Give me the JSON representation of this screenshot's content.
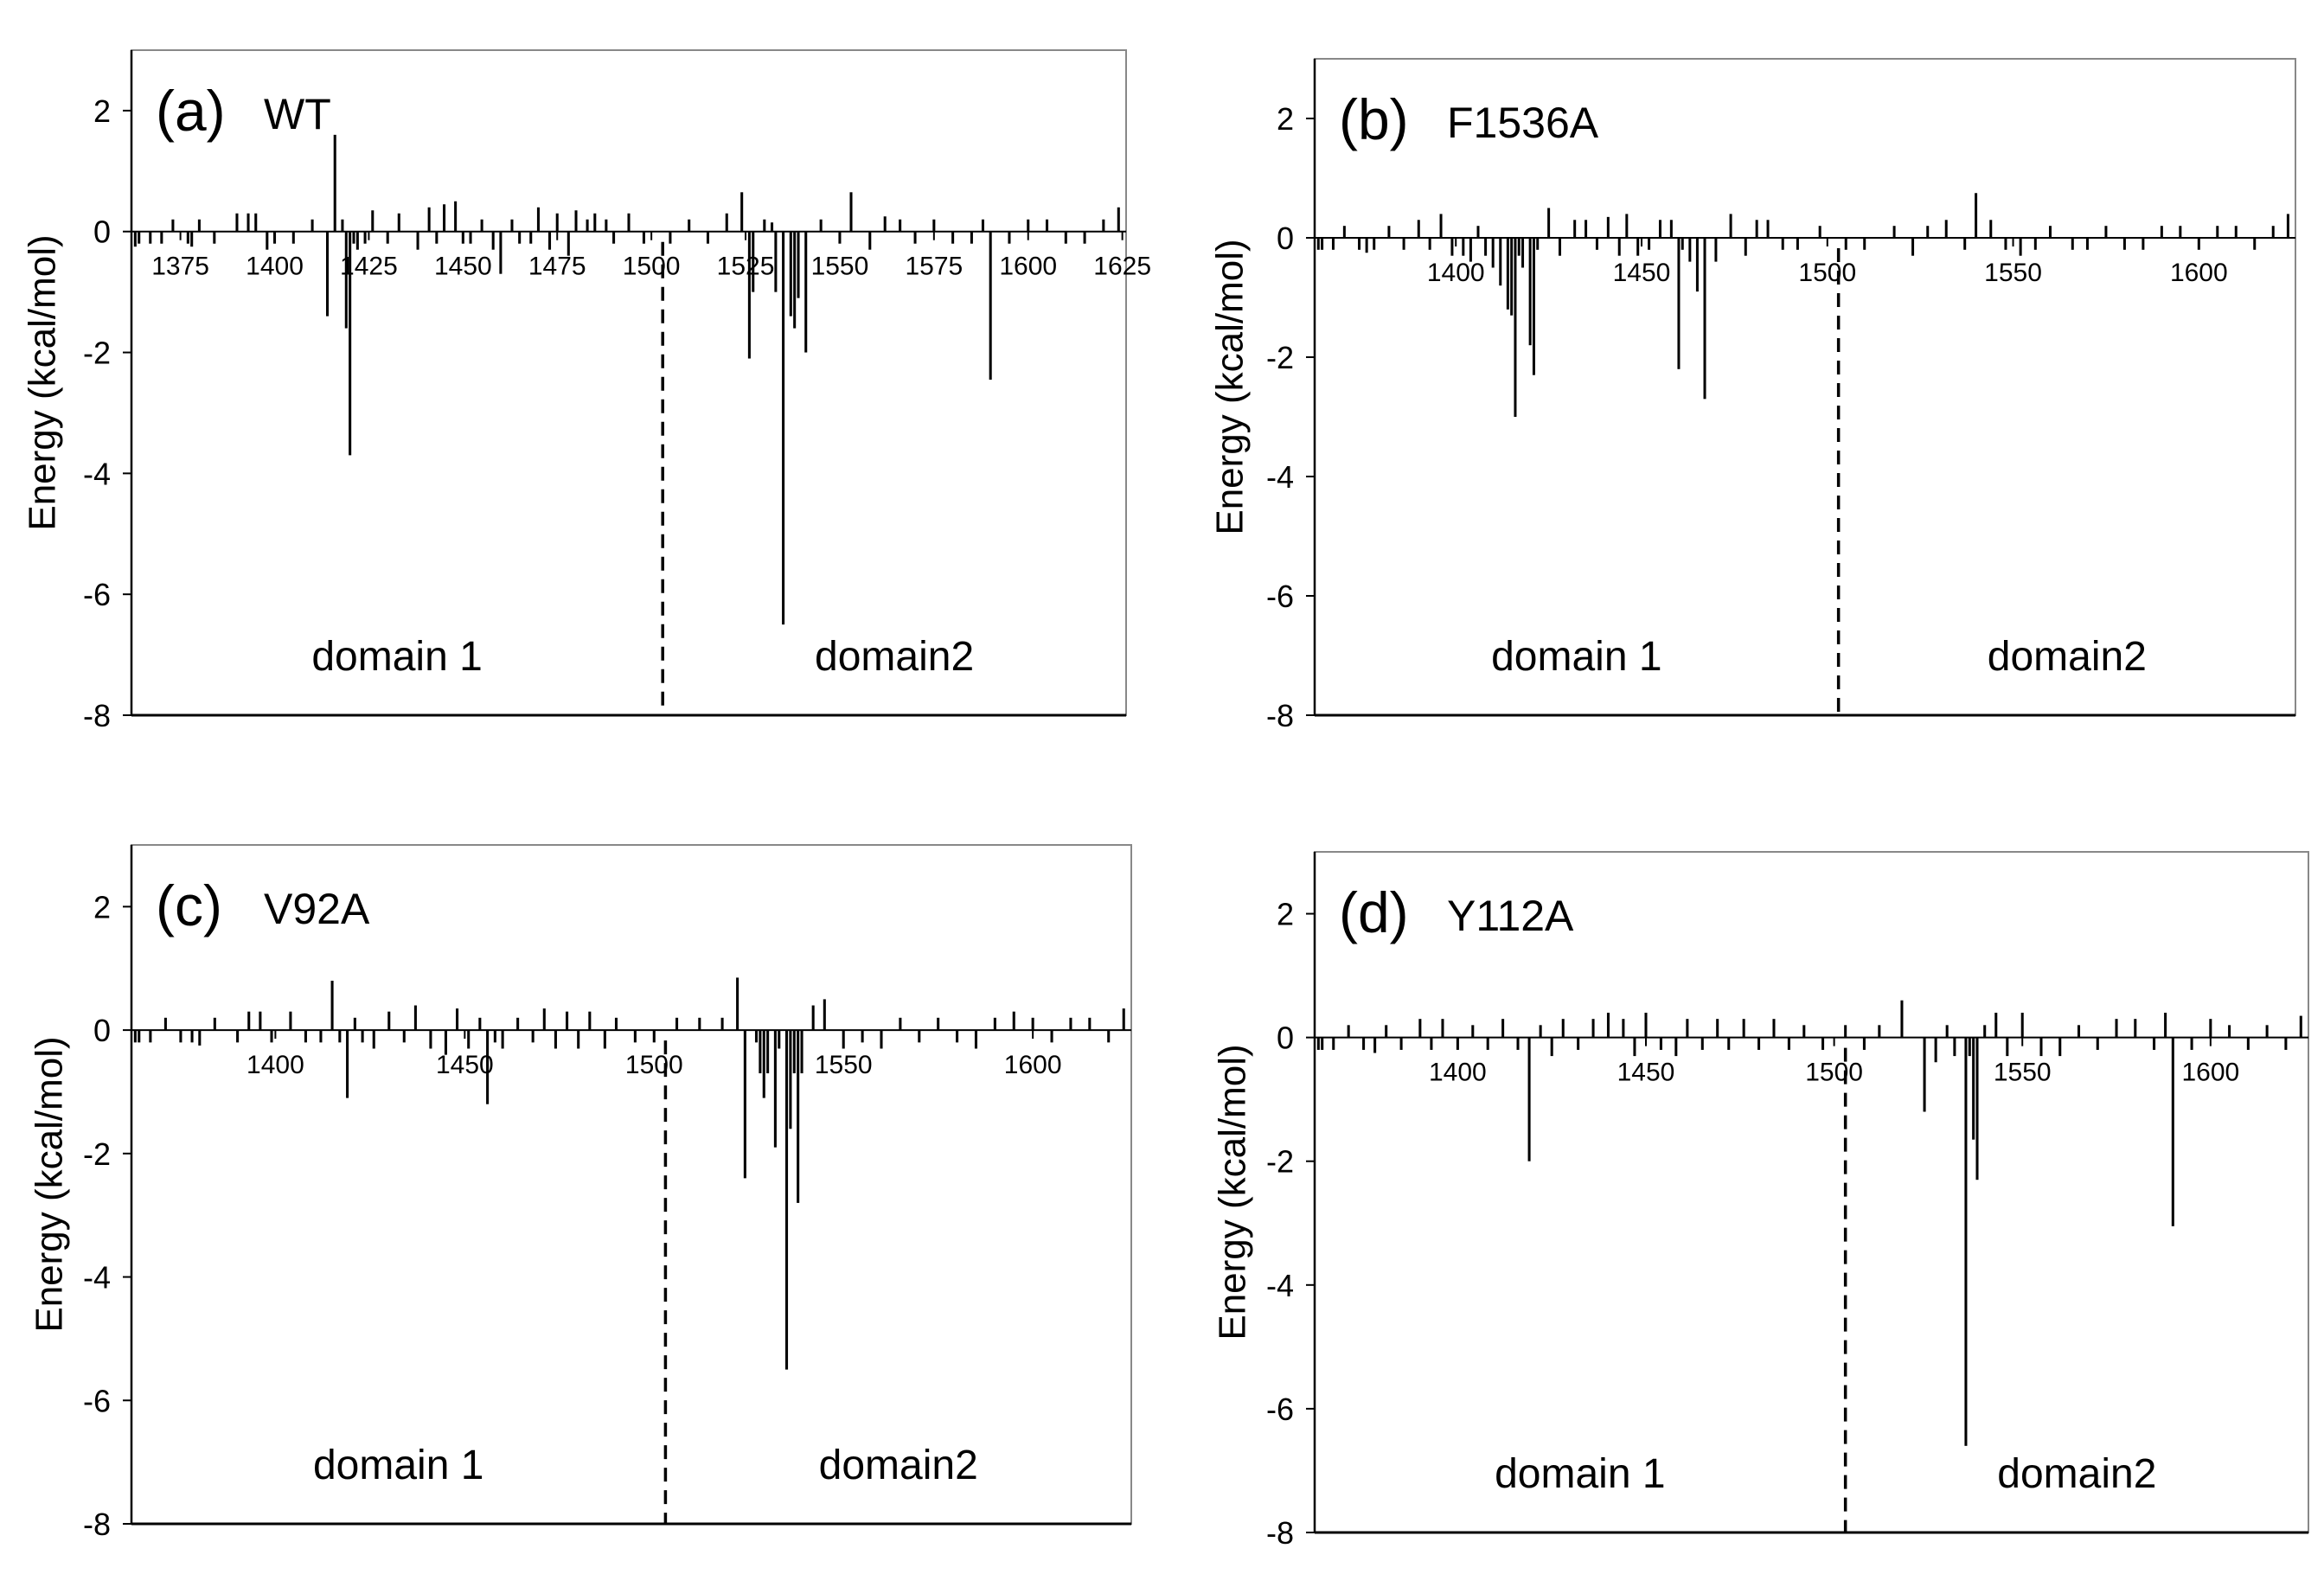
{
  "figure": {
    "ylabel": "Energy (kcal/mol)",
    "yticks": [
      "2",
      "0",
      "-2",
      "-4",
      "-6",
      "-8"
    ]
  },
  "chart_data": [
    {
      "type": "bar",
      "panel": "(a)",
      "title": "WT",
      "xlabel": "",
      "ylabel": "Energy (kcal/mol)",
      "xlim": [
        1362,
        1626
      ],
      "ylim": [
        -8,
        3
      ],
      "xticks": [
        1375,
        1400,
        1425,
        1450,
        1475,
        1500,
        1525,
        1550,
        1575,
        1600,
        1625
      ],
      "boundary": 1503,
      "regions": [
        "domain 1",
        "domain2"
      ],
      "x": [
        1363,
        1364,
        1367,
        1370,
        1373,
        1377,
        1378,
        1380,
        1384,
        1390,
        1393,
        1395,
        1398,
        1400,
        1405,
        1410,
        1414,
        1416,
        1418,
        1419,
        1420,
        1421,
        1422,
        1424,
        1426,
        1430,
        1433,
        1438,
        1441,
        1443,
        1445,
        1448,
        1450,
        1452,
        1455,
        1458,
        1460,
        1463,
        1465,
        1468,
        1470,
        1473,
        1475,
        1478,
        1480,
        1483,
        1485,
        1488,
        1490,
        1494,
        1498,
        1505,
        1510,
        1515,
        1520,
        1524,
        1526,
        1527,
        1530,
        1532,
        1533,
        1535,
        1537,
        1538,
        1539,
        1541,
        1545,
        1550,
        1553,
        1558,
        1562,
        1566,
        1570,
        1575,
        1580,
        1585,
        1588,
        1590,
        1595,
        1600,
        1605,
        1610,
        1615,
        1620,
        1624
      ],
      "values": [
        -0.25,
        -0.2,
        -0.2,
        -0.2,
        0.2,
        -0.2,
        -0.25,
        0.2,
        -0.2,
        0.3,
        0.3,
        0.3,
        -0.3,
        -0.2,
        -0.2,
        0.2,
        -1.4,
        1.6,
        0.2,
        -1.6,
        -3.7,
        -0.2,
        -0.3,
        -0.2,
        0.35,
        -0.2,
        0.3,
        -0.3,
        0.4,
        -0.2,
        0.45,
        0.5,
        -0.2,
        -0.2,
        0.2,
        -0.3,
        -0.7,
        0.2,
        -0.2,
        -0.2,
        0.4,
        -0.3,
        0.3,
        -0.4,
        0.35,
        0.2,
        0.3,
        0.2,
        -0.2,
        0.3,
        -0.2,
        -0.2,
        0.2,
        -0.2,
        0.3,
        0.65,
        -2.1,
        -1.0,
        0.2,
        0.15,
        -1.0,
        -6.5,
        -1.4,
        -1.6,
        -1.1,
        -2.0,
        0.2,
        -0.2,
        0.65,
        -0.3,
        0.25,
        0.2,
        -0.2,
        0.2,
        -0.2,
        -0.2,
        0.2,
        -2.45,
        -0.2,
        0.2,
        0.2,
        -0.2,
        -0.2,
        0.2,
        0.4
      ]
    },
    {
      "type": "bar",
      "panel": "(b)",
      "title": "F1536A",
      "xlabel": "",
      "ylabel": "Energy (kcal/mol)",
      "xlim": [
        1362,
        1626
      ],
      "ylim": [
        -8,
        3
      ],
      "xticks": [
        1400,
        1450,
        1500,
        1550,
        1600
      ],
      "boundary": 1503,
      "regions": [
        "domain 1",
        "domain2"
      ],
      "x": [
        1363,
        1364,
        1367,
        1370,
        1374,
        1376,
        1378,
        1382,
        1386,
        1390,
        1393,
        1396,
        1399,
        1402,
        1404,
        1406,
        1408,
        1410,
        1412,
        1414,
        1415,
        1416,
        1417,
        1418,
        1420,
        1421,
        1422,
        1425,
        1428,
        1432,
        1435,
        1438,
        1441,
        1444,
        1446,
        1449,
        1452,
        1455,
        1458,
        1460,
        1461,
        1463,
        1465,
        1467,
        1470,
        1474,
        1478,
        1481,
        1484,
        1488,
        1492,
        1498,
        1505,
        1510,
        1518,
        1523,
        1527,
        1532,
        1537,
        1540,
        1544,
        1548,
        1552,
        1556,
        1560,
        1566,
        1570,
        1575,
        1580,
        1585,
        1590,
        1595,
        1600,
        1605,
        1610,
        1615,
        1620,
        1624
      ],
      "values": [
        -0.2,
        -0.2,
        -0.2,
        0.2,
        -0.2,
        -0.25,
        -0.2,
        0.2,
        -0.2,
        0.3,
        -0.2,
        0.4,
        -0.3,
        -0.3,
        -0.4,
        0.2,
        -0.3,
        -0.5,
        -0.8,
        -1.2,
        -1.3,
        -3.0,
        -0.3,
        -0.5,
        -1.8,
        -2.3,
        -0.2,
        0.5,
        -0.3,
        0.3,
        0.3,
        -0.2,
        0.35,
        -0.3,
        0.4,
        -0.3,
        -0.2,
        0.3,
        0.3,
        -2.2,
        -0.2,
        -0.4,
        -0.9,
        -2.7,
        -0.4,
        0.4,
        -0.3,
        0.3,
        0.3,
        -0.2,
        -0.2,
        0.2,
        -0.2,
        -0.2,
        0.2,
        -0.3,
        0.2,
        0.3,
        -0.2,
        0.75,
        0.3,
        -0.2,
        -0.3,
        -0.2,
        0.2,
        -0.2,
        -0.2,
        0.2,
        -0.2,
        -0.2,
        0.2,
        0.2,
        -0.2,
        0.2,
        0.2,
        -0.2,
        0.2,
        0.4
      ]
    },
    {
      "type": "bar",
      "panel": "(c)",
      "title": "V92A",
      "xlabel": "",
      "ylabel": "Energy (kcal/mol)",
      "xlim": [
        1362,
        1626
      ],
      "ylim": [
        -8,
        3
      ],
      "xticks": [
        1400,
        1450,
        1500,
        1550,
        1600
      ],
      "boundary": 1503,
      "regions": [
        "domain 1",
        "domain2"
      ],
      "x": [
        1363,
        1364,
        1367,
        1371,
        1375,
        1378,
        1380,
        1384,
        1390,
        1393,
        1396,
        1399,
        1404,
        1408,
        1412,
        1415,
        1417,
        1419,
        1421,
        1423,
        1426,
        1430,
        1434,
        1437,
        1441,
        1445,
        1448,
        1451,
        1454,
        1456,
        1458,
        1460,
        1464,
        1468,
        1471,
        1474,
        1477,
        1480,
        1483,
        1487,
        1490,
        1495,
        1500,
        1506,
        1512,
        1518,
        1522,
        1524,
        1527,
        1528,
        1529,
        1530,
        1532,
        1533,
        1535,
        1536,
        1537,
        1538,
        1539,
        1542,
        1545,
        1550,
        1555,
        1560,
        1565,
        1570,
        1575,
        1580,
        1585,
        1590,
        1595,
        1600,
        1605,
        1610,
        1615,
        1620,
        1624
      ],
      "values": [
        -0.2,
        -0.2,
        -0.2,
        0.2,
        -0.2,
        -0.2,
        -0.25,
        0.2,
        -0.2,
        0.3,
        0.3,
        -0.2,
        0.3,
        -0.2,
        -0.2,
        0.8,
        -0.2,
        -1.1,
        0.2,
        -0.2,
        -0.3,
        0.3,
        -0.2,
        0.4,
        -0.3,
        -0.4,
        0.35,
        -0.3,
        0.2,
        -1.2,
        -0.2,
        -0.3,
        0.2,
        -0.2,
        0.35,
        -0.3,
        0.3,
        -0.3,
        0.3,
        -0.3,
        0.2,
        -0.2,
        -0.2,
        0.2,
        0.2,
        0.2,
        0.85,
        -2.4,
        -0.2,
        -0.7,
        -1.1,
        -0.7,
        -1.9,
        -0.3,
        -5.5,
        -1.6,
        -0.7,
        -2.8,
        -0.7,
        0.4,
        0.5,
        -0.3,
        -0.2,
        -0.3,
        0.2,
        -0.2,
        0.2,
        -0.2,
        -0.3,
        0.2,
        0.3,
        0.2,
        -0.2,
        0.2,
        0.2,
        -0.2,
        0.35
      ]
    },
    {
      "type": "bar",
      "panel": "(d)",
      "title": "Y112A",
      "xlabel": "",
      "ylabel": "Energy (kcal/mol)",
      "xlim": [
        1362,
        1626
      ],
      "ylim": [
        -8,
        3
      ],
      "xticks": [
        1400,
        1450,
        1500,
        1550,
        1600
      ],
      "boundary": 1503,
      "regions": [
        "domain 1",
        "domain2"
      ],
      "x": [
        1363,
        1364,
        1367,
        1371,
        1375,
        1378,
        1381,
        1385,
        1390,
        1393,
        1396,
        1400,
        1404,
        1408,
        1412,
        1416,
        1419,
        1422,
        1425,
        1428,
        1432,
        1436,
        1440,
        1444,
        1447,
        1450,
        1454,
        1458,
        1461,
        1465,
        1469,
        1472,
        1476,
        1480,
        1484,
        1488,
        1492,
        1497,
        1503,
        1508,
        1512,
        1518,
        1524,
        1527,
        1530,
        1532,
        1535,
        1536,
        1537,
        1538,
        1540,
        1543,
        1546,
        1550,
        1555,
        1560,
        1565,
        1570,
        1575,
        1580,
        1585,
        1588,
        1590,
        1595,
        1600,
        1605,
        1610,
        1615,
        1620,
        1624
      ],
      "values": [
        -0.2,
        -0.2,
        -0.2,
        0.2,
        -0.2,
        -0.25,
        0.2,
        -0.2,
        0.3,
        -0.2,
        0.3,
        -0.2,
        0.2,
        -0.2,
        0.3,
        -0.2,
        -2.0,
        0.2,
        -0.3,
        0.3,
        -0.2,
        0.3,
        0.4,
        0.3,
        -0.3,
        0.4,
        -0.2,
        -0.3,
        0.3,
        -0.2,
        0.3,
        -0.2,
        0.3,
        -0.2,
        0.3,
        -0.2,
        0.2,
        -0.2,
        0.2,
        -0.2,
        0.2,
        0.6,
        -1.2,
        -0.4,
        0.2,
        -0.3,
        -6.6,
        -0.3,
        -1.65,
        -2.3,
        0.2,
        0.4,
        -0.3,
        0.4,
        -0.3,
        -0.3,
        0.2,
        -0.2,
        0.3,
        0.3,
        -0.2,
        0.4,
        -3.05,
        -0.2,
        0.3,
        0.2,
        -0.2,
        0.2,
        -0.2,
        0.35
      ]
    }
  ]
}
